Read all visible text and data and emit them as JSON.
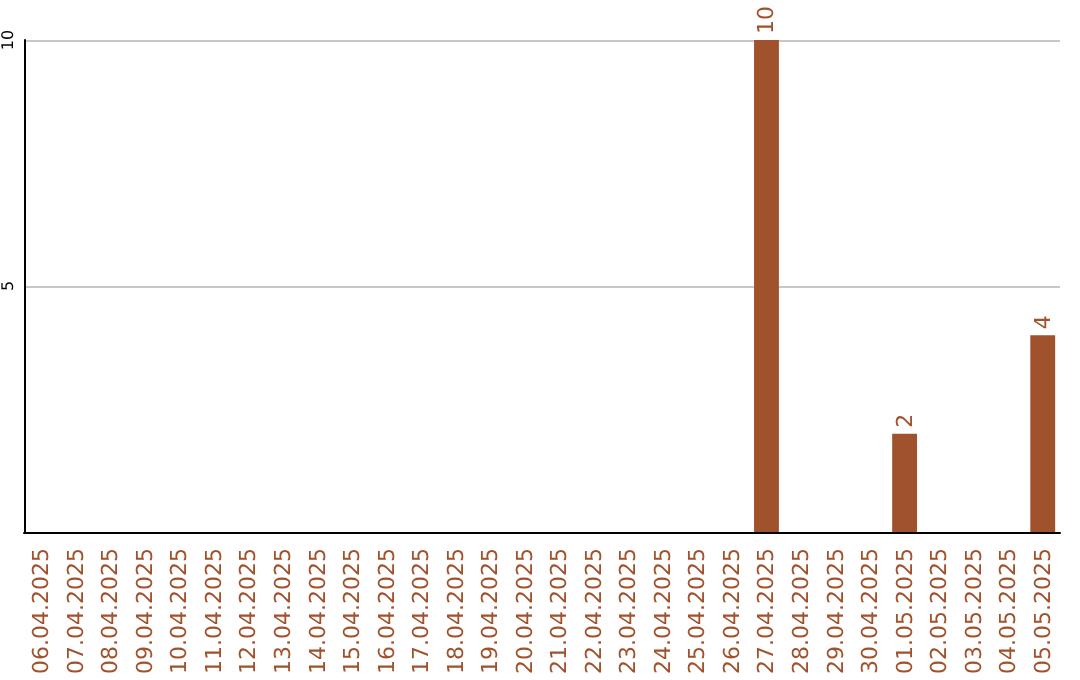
{
  "chart_data": {
    "type": "bar",
    "categories": [
      "06.04.2025",
      "07.04.2025",
      "08.04.2025",
      "09.04.2025",
      "10.04.2025",
      "11.04.2025",
      "12.04.2025",
      "13.04.2025",
      "14.04.2025",
      "15.04.2025",
      "16.04.2025",
      "17.04.2025",
      "18.04.2025",
      "19.04.2025",
      "20.04.2025",
      "21.04.2025",
      "22.04.2025",
      "23.04.2025",
      "24.04.2025",
      "25.04.2025",
      "26.04.2025",
      "27.04.2025",
      "28.04.2025",
      "29.04.2025",
      "30.04.2025",
      "01.05.2025",
      "02.05.2025",
      "03.05.2025",
      "04.05.2025",
      "05.05.2025"
    ],
    "values": [
      0,
      0,
      0,
      0,
      0,
      0,
      0,
      0,
      0,
      0,
      0,
      0,
      0,
      0,
      0,
      0,
      0,
      0,
      0,
      0,
      0,
      10,
      0,
      0,
      0,
      2,
      0,
      0,
      0,
      4
    ],
    "value_labels": [
      null,
      null,
      null,
      null,
      null,
      null,
      null,
      null,
      null,
      null,
      null,
      null,
      null,
      null,
      null,
      null,
      null,
      null,
      null,
      null,
      null,
      "10",
      null,
      null,
      null,
      "2",
      null,
      null,
      null,
      "4"
    ],
    "color": "#a0522d",
    "ylim": [
      0,
      10
    ],
    "yticks": [
      {
        "value": 0,
        "label": null
      },
      5,
      10
    ],
    "grid": "y"
  }
}
